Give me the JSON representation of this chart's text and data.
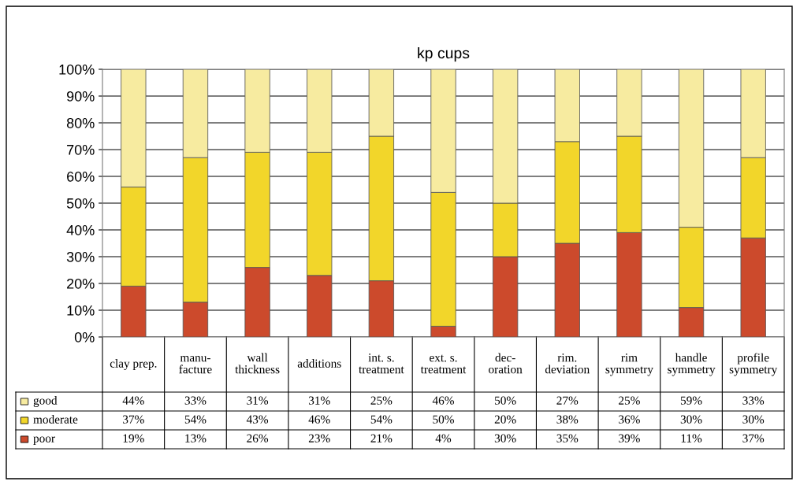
{
  "chart_data": {
    "type": "bar",
    "title": "kp cups",
    "stacked": true,
    "categories": [
      "clay prep.",
      "manu-\nfacture",
      "wall\nthickness",
      "additions",
      "int. s.\ntreatment",
      "ext. s.\ntreatment",
      "dec-\noration",
      "rim.\ndeviation",
      "rim\nsymmetry",
      "handle\nsymmetry",
      "profile\nsymmetry"
    ],
    "series": [
      {
        "name": "poor",
        "color": "#cc4a2c",
        "values": [
          19,
          13,
          26,
          23,
          21,
          4,
          30,
          35,
          39,
          11,
          37
        ],
        "value_labels": [
          "19%",
          "13%",
          "26%",
          "23%",
          "21%",
          "4%",
          "30%",
          "35%",
          "39%",
          "11%",
          "37%"
        ]
      },
      {
        "name": "moderate",
        "color": "#f2d62a",
        "values": [
          37,
          54,
          43,
          46,
          54,
          50,
          20,
          38,
          36,
          30,
          30
        ],
        "value_labels": [
          "37%",
          "54%",
          "43%",
          "46%",
          "54%",
          "50%",
          "20%",
          "38%",
          "36%",
          "30%",
          "30%"
        ]
      },
      {
        "name": "good",
        "color": "#f7eba0",
        "values": [
          44,
          33,
          31,
          31,
          25,
          46,
          50,
          27,
          25,
          59,
          33
        ],
        "value_labels": [
          "44%",
          "33%",
          "31%",
          "31%",
          "25%",
          "46%",
          "50%",
          "27%",
          "25%",
          "59%",
          "33%"
        ]
      }
    ],
    "ylim": [
      0,
      100
    ],
    "yticks": [
      {
        "value": 0,
        "label": "0%"
      },
      {
        "value": 10,
        "label": "10%"
      },
      {
        "value": 20,
        "label": "20%"
      },
      {
        "value": 30,
        "label": "30%"
      },
      {
        "value": 40,
        "label": "40%"
      },
      {
        "value": 50,
        "label": "50%"
      },
      {
        "value": 60,
        "label": "60%"
      },
      {
        "value": 70,
        "label": "70%"
      },
      {
        "value": 80,
        "label": "80%"
      },
      {
        "value": 90,
        "label": "90%"
      },
      {
        "value": 100,
        "label": "100%"
      }
    ],
    "grid": "y",
    "legend": "bottom left"
  }
}
